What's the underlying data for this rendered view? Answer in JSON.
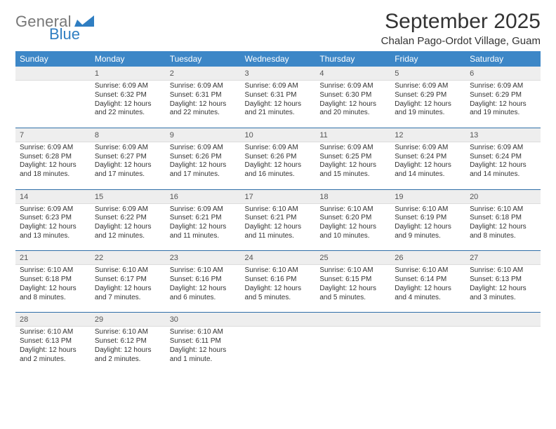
{
  "logo": {
    "word1": "General",
    "word2": "Blue",
    "mark_color": "#2f7ec2"
  },
  "title": "September 2025",
  "location": "Chalan Pago-Ordot Village, Guam",
  "colors": {
    "header_bg": "#3d87c7",
    "header_fg": "#ffffff",
    "daynum_bg": "#eeeeee",
    "sep_line": "#2f6ea8",
    "text": "#333333"
  },
  "weekdays": [
    "Sunday",
    "Monday",
    "Tuesday",
    "Wednesday",
    "Thursday",
    "Friday",
    "Saturday"
  ],
  "weeks": [
    [
      null,
      {
        "n": "1",
        "sunrise": "6:09 AM",
        "sunset": "6:32 PM",
        "daylight": "12 hours and 22 minutes."
      },
      {
        "n": "2",
        "sunrise": "6:09 AM",
        "sunset": "6:31 PM",
        "daylight": "12 hours and 22 minutes."
      },
      {
        "n": "3",
        "sunrise": "6:09 AM",
        "sunset": "6:31 PM",
        "daylight": "12 hours and 21 minutes."
      },
      {
        "n": "4",
        "sunrise": "6:09 AM",
        "sunset": "6:30 PM",
        "daylight": "12 hours and 20 minutes."
      },
      {
        "n": "5",
        "sunrise": "6:09 AM",
        "sunset": "6:29 PM",
        "daylight": "12 hours and 19 minutes."
      },
      {
        "n": "6",
        "sunrise": "6:09 AM",
        "sunset": "6:29 PM",
        "daylight": "12 hours and 19 minutes."
      }
    ],
    [
      {
        "n": "7",
        "sunrise": "6:09 AM",
        "sunset": "6:28 PM",
        "daylight": "12 hours and 18 minutes."
      },
      {
        "n": "8",
        "sunrise": "6:09 AM",
        "sunset": "6:27 PM",
        "daylight": "12 hours and 17 minutes."
      },
      {
        "n": "9",
        "sunrise": "6:09 AM",
        "sunset": "6:26 PM",
        "daylight": "12 hours and 17 minutes."
      },
      {
        "n": "10",
        "sunrise": "6:09 AM",
        "sunset": "6:26 PM",
        "daylight": "12 hours and 16 minutes."
      },
      {
        "n": "11",
        "sunrise": "6:09 AM",
        "sunset": "6:25 PM",
        "daylight": "12 hours and 15 minutes."
      },
      {
        "n": "12",
        "sunrise": "6:09 AM",
        "sunset": "6:24 PM",
        "daylight": "12 hours and 14 minutes."
      },
      {
        "n": "13",
        "sunrise": "6:09 AM",
        "sunset": "6:24 PM",
        "daylight": "12 hours and 14 minutes."
      }
    ],
    [
      {
        "n": "14",
        "sunrise": "6:09 AM",
        "sunset": "6:23 PM",
        "daylight": "12 hours and 13 minutes."
      },
      {
        "n": "15",
        "sunrise": "6:09 AM",
        "sunset": "6:22 PM",
        "daylight": "12 hours and 12 minutes."
      },
      {
        "n": "16",
        "sunrise": "6:09 AM",
        "sunset": "6:21 PM",
        "daylight": "12 hours and 11 minutes."
      },
      {
        "n": "17",
        "sunrise": "6:10 AM",
        "sunset": "6:21 PM",
        "daylight": "12 hours and 11 minutes."
      },
      {
        "n": "18",
        "sunrise": "6:10 AM",
        "sunset": "6:20 PM",
        "daylight": "12 hours and 10 minutes."
      },
      {
        "n": "19",
        "sunrise": "6:10 AM",
        "sunset": "6:19 PM",
        "daylight": "12 hours and 9 minutes."
      },
      {
        "n": "20",
        "sunrise": "6:10 AM",
        "sunset": "6:18 PM",
        "daylight": "12 hours and 8 minutes."
      }
    ],
    [
      {
        "n": "21",
        "sunrise": "6:10 AM",
        "sunset": "6:18 PM",
        "daylight": "12 hours and 8 minutes."
      },
      {
        "n": "22",
        "sunrise": "6:10 AM",
        "sunset": "6:17 PM",
        "daylight": "12 hours and 7 minutes."
      },
      {
        "n": "23",
        "sunrise": "6:10 AM",
        "sunset": "6:16 PM",
        "daylight": "12 hours and 6 minutes."
      },
      {
        "n": "24",
        "sunrise": "6:10 AM",
        "sunset": "6:16 PM",
        "daylight": "12 hours and 5 minutes."
      },
      {
        "n": "25",
        "sunrise": "6:10 AM",
        "sunset": "6:15 PM",
        "daylight": "12 hours and 5 minutes."
      },
      {
        "n": "26",
        "sunrise": "6:10 AM",
        "sunset": "6:14 PM",
        "daylight": "12 hours and 4 minutes."
      },
      {
        "n": "27",
        "sunrise": "6:10 AM",
        "sunset": "6:13 PM",
        "daylight": "12 hours and 3 minutes."
      }
    ],
    [
      {
        "n": "28",
        "sunrise": "6:10 AM",
        "sunset": "6:13 PM",
        "daylight": "12 hours and 2 minutes."
      },
      {
        "n": "29",
        "sunrise": "6:10 AM",
        "sunset": "6:12 PM",
        "daylight": "12 hours and 2 minutes."
      },
      {
        "n": "30",
        "sunrise": "6:10 AM",
        "sunset": "6:11 PM",
        "daylight": "12 hours and 1 minute."
      },
      null,
      null,
      null,
      null
    ]
  ],
  "labels": {
    "sunrise": "Sunrise:",
    "sunset": "Sunset:",
    "daylight": "Daylight:"
  }
}
